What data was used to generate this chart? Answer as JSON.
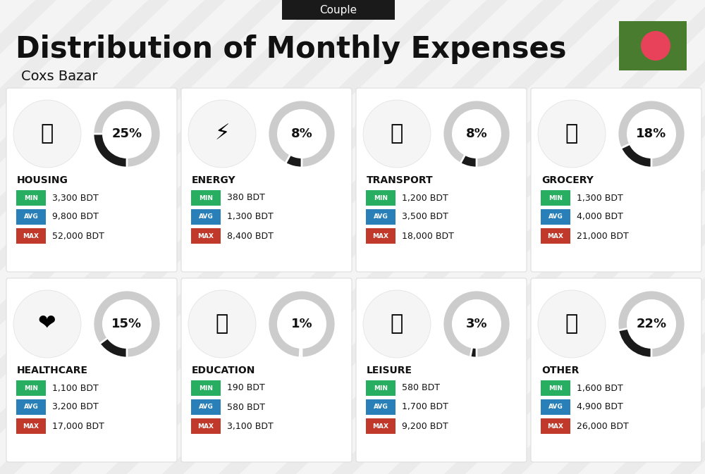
{
  "title": "Distribution of Monthly Expenses",
  "subtitle": "Coxs Bazar",
  "tab_label": "Couple",
  "bg_color": "#ebebeb",
  "categories": [
    {
      "name": "HOUSING",
      "percent": 25,
      "min": "3,300 BDT",
      "avg": "9,800 BDT",
      "max": "52,000 BDT",
      "row": 0,
      "col": 0
    },
    {
      "name": "ENERGY",
      "percent": 8,
      "min": "380 BDT",
      "avg": "1,300 BDT",
      "max": "8,400 BDT",
      "row": 0,
      "col": 1
    },
    {
      "name": "TRANSPORT",
      "percent": 8,
      "min": "1,200 BDT",
      "avg": "3,500 BDT",
      "max": "18,000 BDT",
      "row": 0,
      "col": 2
    },
    {
      "name": "GROCERY",
      "percent": 18,
      "min": "1,300 BDT",
      "avg": "4,000 BDT",
      "max": "21,000 BDT",
      "row": 0,
      "col": 3
    },
    {
      "name": "HEALTHCARE",
      "percent": 15,
      "min": "1,100 BDT",
      "avg": "3,200 BDT",
      "max": "17,000 BDT",
      "row": 1,
      "col": 0
    },
    {
      "name": "EDUCATION",
      "percent": 1,
      "min": "190 BDT",
      "avg": "580 BDT",
      "max": "3,100 BDT",
      "row": 1,
      "col": 1
    },
    {
      "name": "LEISURE",
      "percent": 3,
      "min": "580 BDT",
      "avg": "1,700 BDT",
      "max": "9,200 BDT",
      "row": 1,
      "col": 2
    },
    {
      "name": "OTHER",
      "percent": 22,
      "min": "1,600 BDT",
      "avg": "4,900 BDT",
      "max": "26,000 BDT",
      "row": 1,
      "col": 3
    }
  ],
  "color_min": "#27ae60",
  "color_avg": "#2980b9",
  "color_max": "#c0392b",
  "color_circle_bg": "#cccccc",
  "color_circle_fill": "#1a1a1a",
  "flag_green": "#4a7c2f",
  "flag_red": "#e8425a",
  "stripe_color": "#ffffff",
  "card_bg": "#ffffff"
}
